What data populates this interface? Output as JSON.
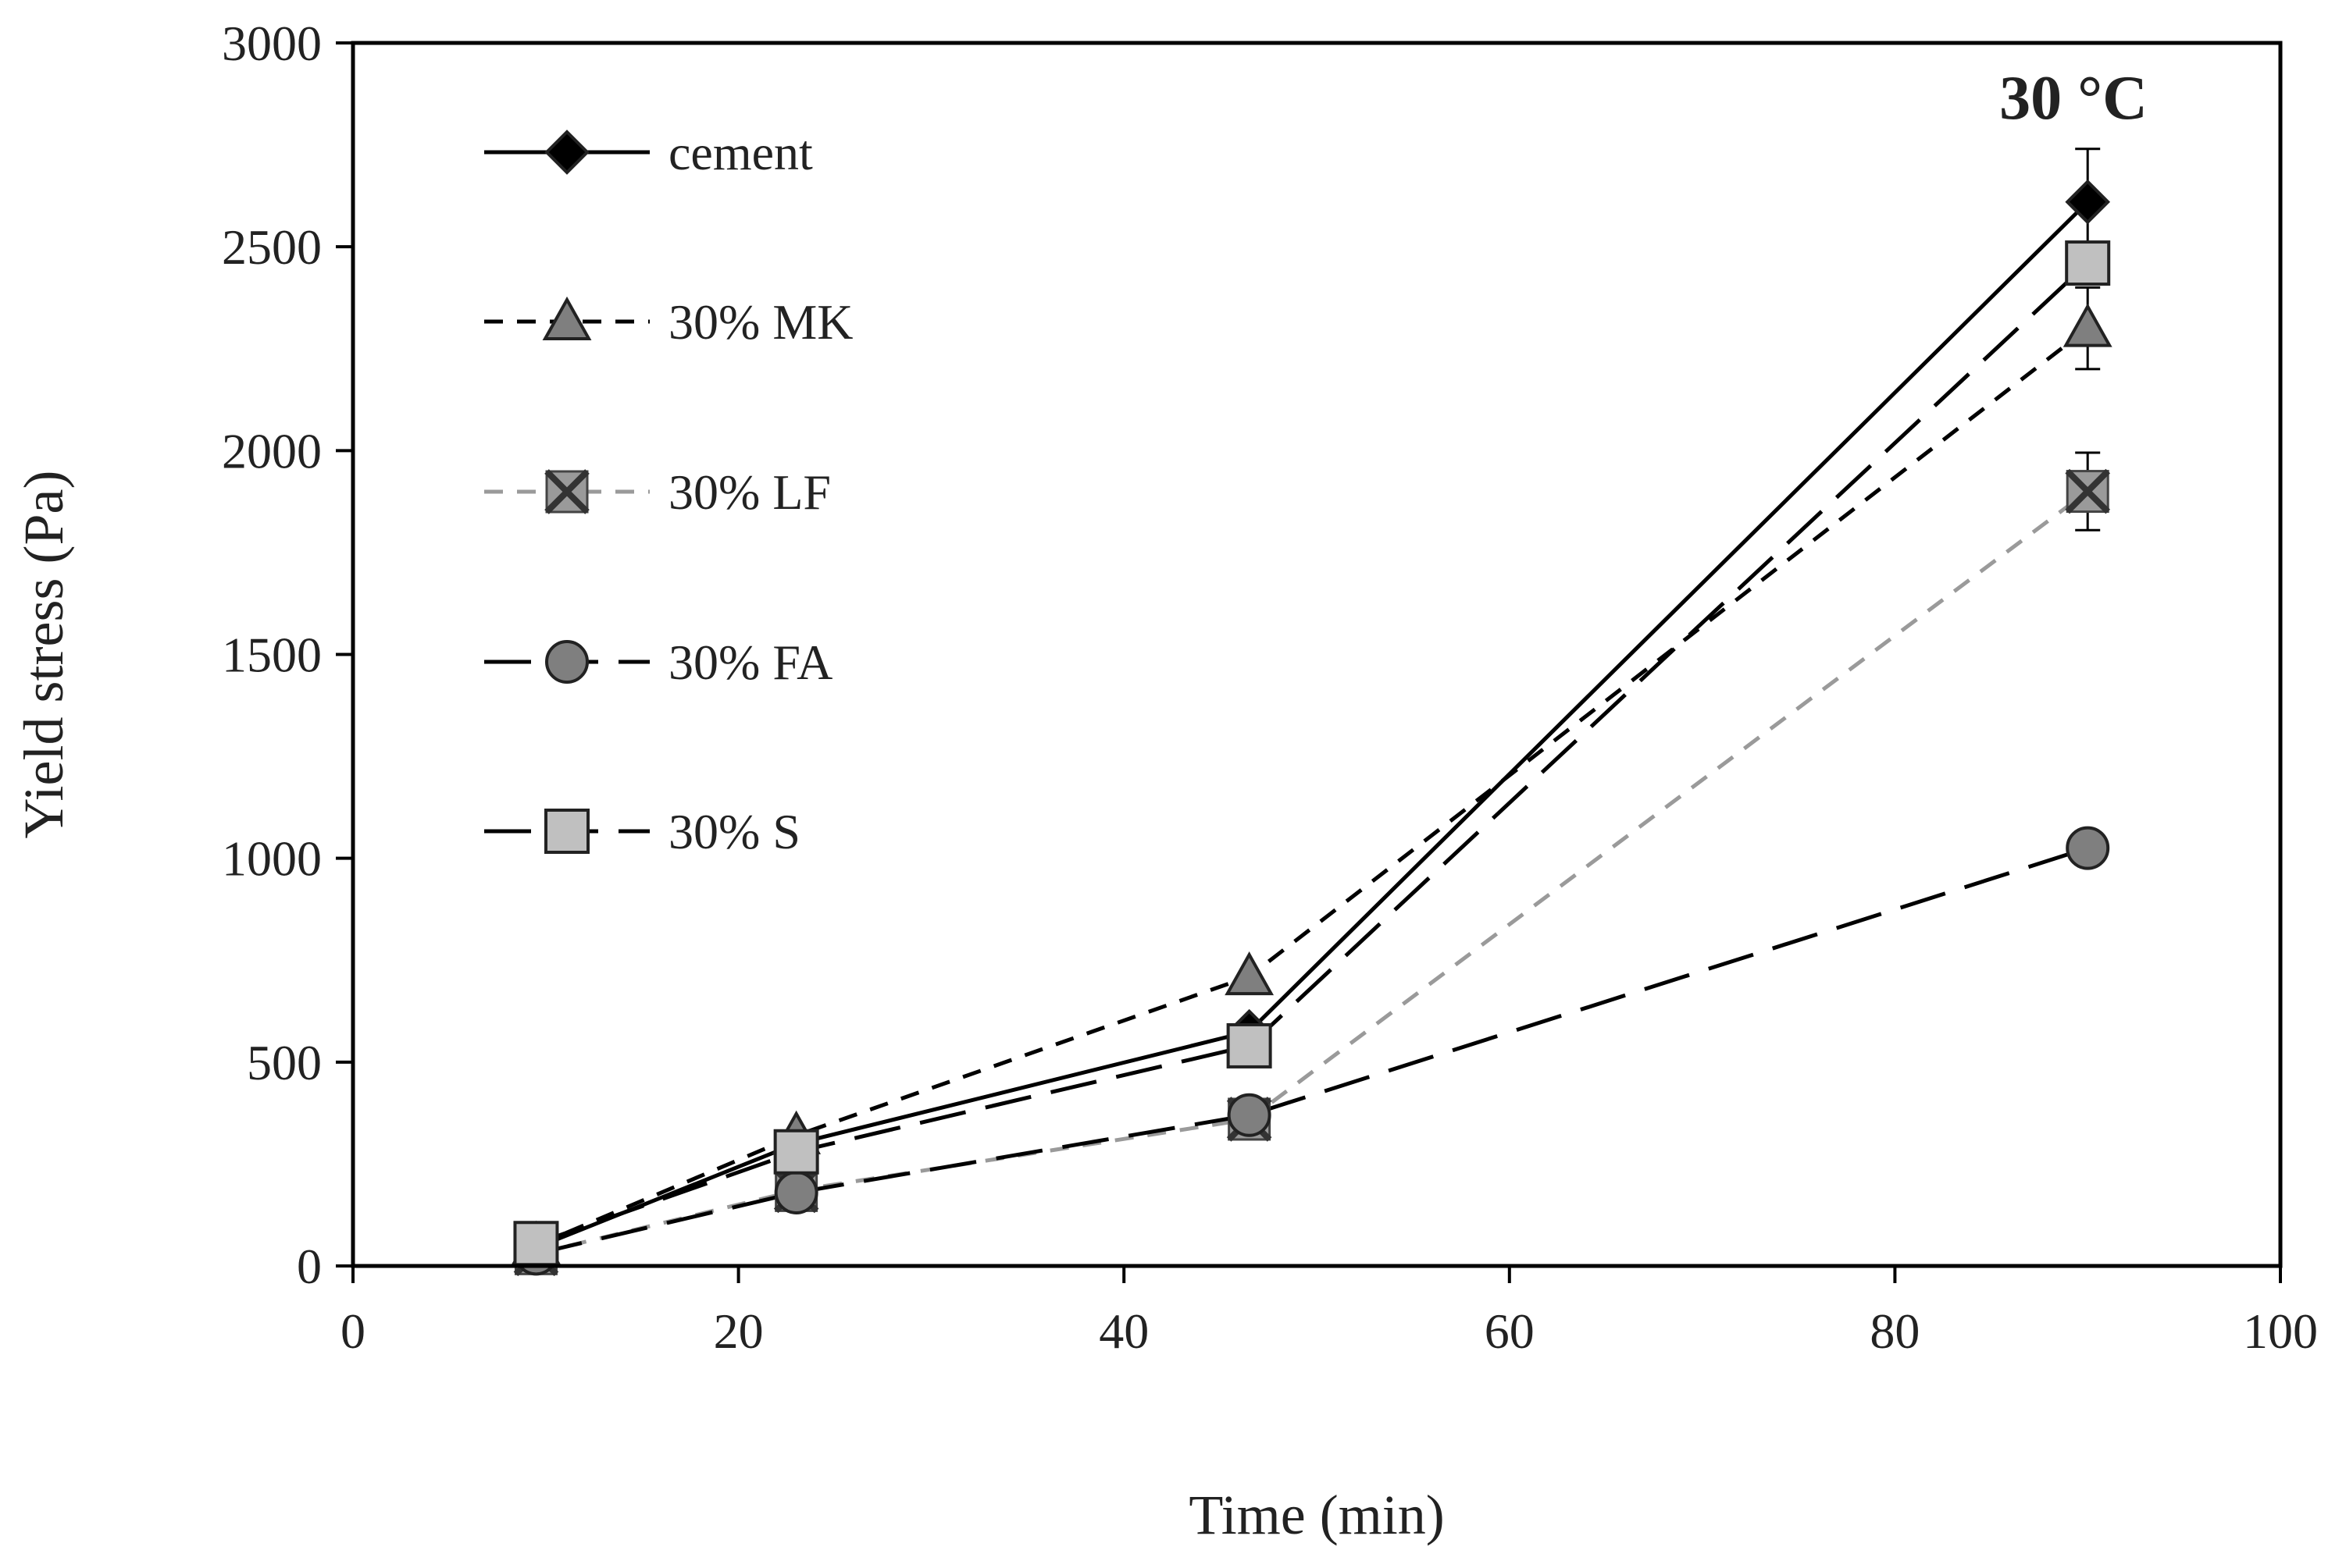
{
  "chart_data": {
    "type": "line",
    "title": "",
    "annotation": "30 °C",
    "xlabel": "Time (min)",
    "ylabel": "Yield stress (Pa)",
    "xlim": [
      0,
      100
    ],
    "ylim": [
      0,
      3000
    ],
    "xticks": [
      0,
      20,
      40,
      60,
      80,
      100
    ],
    "yticks": [
      0,
      500,
      1000,
      1500,
      2000,
      2500,
      3000
    ],
    "grid": false,
    "legend_position": "top-left",
    "series": [
      {
        "name": "cement",
        "marker": "diamond",
        "line": "solid",
        "line_color": "#000000",
        "marker_color": "#000000",
        "x": [
          9.5,
          23,
          46.5,
          90
        ],
        "y": [
          45,
          300,
          575,
          2610
        ],
        "error": [
          0,
          0,
          0,
          130
        ]
      },
      {
        "name": "30% MK",
        "marker": "triangle",
        "line": "short-dash",
        "line_color": "#000000",
        "marker_color": "#7f7f7f",
        "x": [
          9.5,
          23,
          46.5,
          90
        ],
        "y": [
          50,
          320,
          710,
          2300
        ],
        "error": [
          0,
          0,
          0,
          100
        ]
      },
      {
        "name": "30% LF",
        "marker": "x-square",
        "line": "short-dash",
        "line_color": "#9a9a9a",
        "marker_color": "#7f7f7f",
        "x": [
          9.5,
          23,
          46.5,
          90
        ],
        "y": [
          30,
          185,
          360,
          1900
        ],
        "error": [
          0,
          0,
          0,
          95
        ]
      },
      {
        "name": "30% FA",
        "marker": "circle",
        "line": "long-dash",
        "line_color": "#000000",
        "marker_color": "#7f7f7f",
        "x": [
          9.5,
          23,
          46.5,
          90
        ],
        "y": [
          30,
          180,
          370,
          1025
        ],
        "error": [
          0,
          0,
          0,
          0
        ]
      },
      {
        "name": "30% S",
        "marker": "square",
        "line": "long-dash",
        "line_color": "#000000",
        "marker_color": "#c0c0c0",
        "x": [
          9.5,
          23,
          46.5,
          90
        ],
        "y": [
          55,
          280,
          540,
          2460
        ],
        "error": [
          0,
          0,
          0,
          0
        ]
      }
    ]
  }
}
